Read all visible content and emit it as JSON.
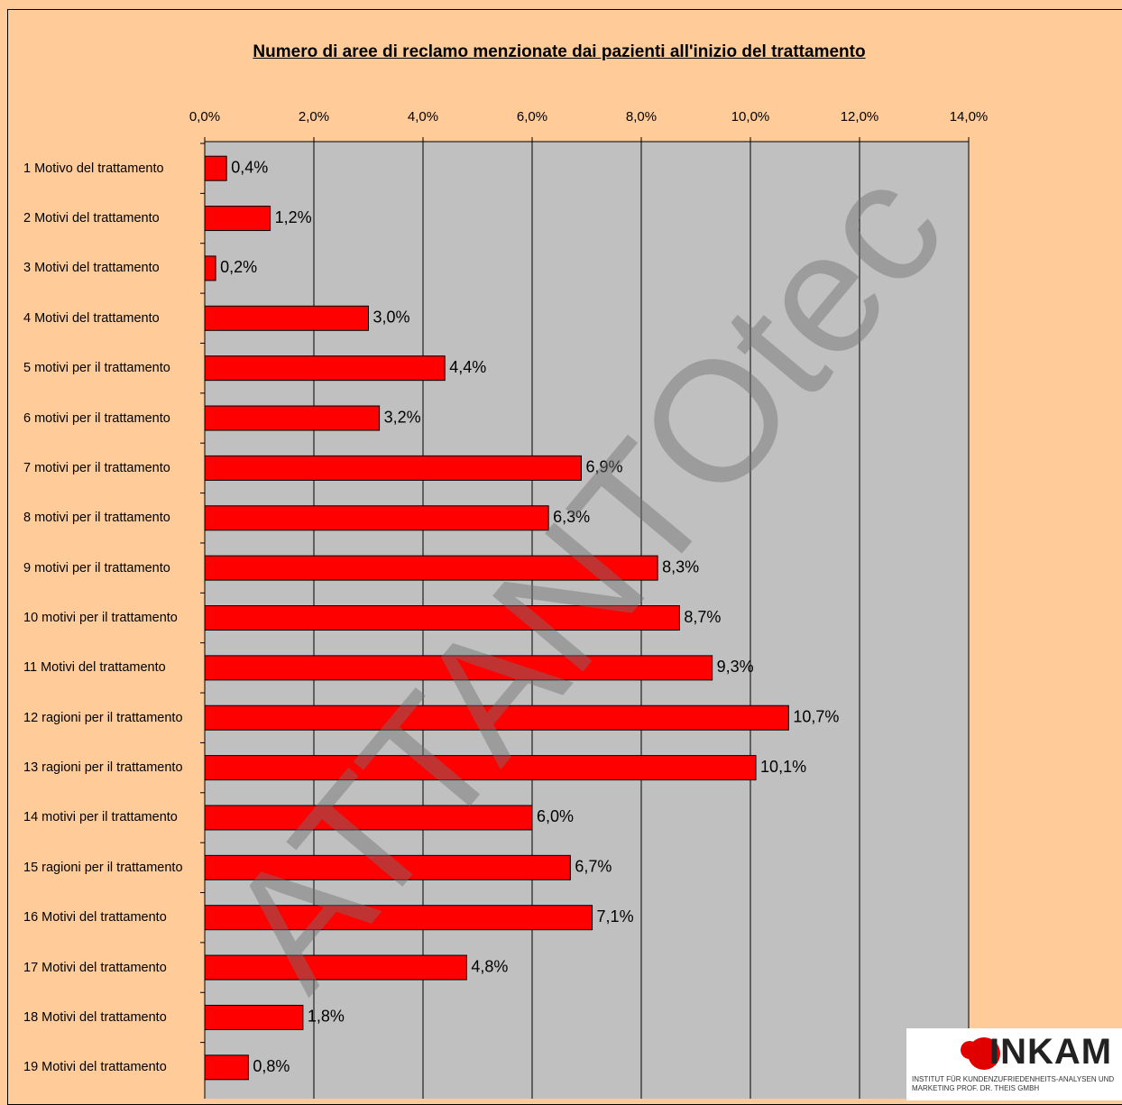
{
  "chart_data": {
    "type": "hbar",
    "title": "Numero di aree di reclamo menzionate dai pazienti all'inizio del trattamento",
    "categories": [
      "1 Motivo del trattamento",
      "2 Motivi del trattamento",
      "3 Motivi del trattamento",
      "4 Motivi del trattamento",
      "5 motivi per il trattamento",
      "6 motivi per il trattamento",
      "7 motivi per il trattamento",
      "8 motivi per il trattamento",
      "9 motivi per il trattamento",
      "10 motivi per il trattamento",
      "11 Motivi del trattamento",
      "12 ragioni per il trattamento",
      "13 ragioni per il trattamento",
      "14 motivi per il trattamento",
      "15 ragioni per il trattamento",
      "16 Motivi del trattamento",
      "17 Motivi del trattamento",
      "18 Motivi del trattamento",
      "19 Motivi del trattamento"
    ],
    "values": [
      0.4,
      1.2,
      0.2,
      3.0,
      4.4,
      3.2,
      6.9,
      6.3,
      8.3,
      8.7,
      9.3,
      10.7,
      10.1,
      6.0,
      6.7,
      7.1,
      4.8,
      1.8,
      0.8
    ],
    "value_labels": [
      "0,4%",
      "1,2%",
      "0,2%",
      "3,0%",
      "4,4%",
      "3,2%",
      "6,9%",
      "6,3%",
      "8,3%",
      "8,7%",
      "9,3%",
      "10,7%",
      "10,1%",
      "6,0%",
      "6,7%",
      "7,1%",
      "4,8%",
      "1,8%",
      "0,8%"
    ],
    "color": "#ff0000",
    "xlim": [
      0,
      14
    ],
    "xticks": [
      {
        "value": 0,
        "label": "0,0%"
      },
      {
        "value": 2,
        "label": "2,0%"
      },
      {
        "value": 4,
        "label": "4,0%"
      },
      {
        "value": 6,
        "label": "6,0%"
      },
      {
        "value": 8,
        "label": "8,0%"
      },
      {
        "value": 10,
        "label": "10,0%"
      },
      {
        "value": 12,
        "label": "12,0%"
      },
      {
        "value": 14,
        "label": "14,0%"
      }
    ],
    "grid": true,
    "watermark": "ATTANTOtec",
    "logo": {
      "name": "INKAM",
      "subtitle": "INSTITUT FÜR KUNDENZUFRIEDENHEITS-ANALYSEN UND MARKETING PROF. DR. THEIS GMBH"
    }
  }
}
